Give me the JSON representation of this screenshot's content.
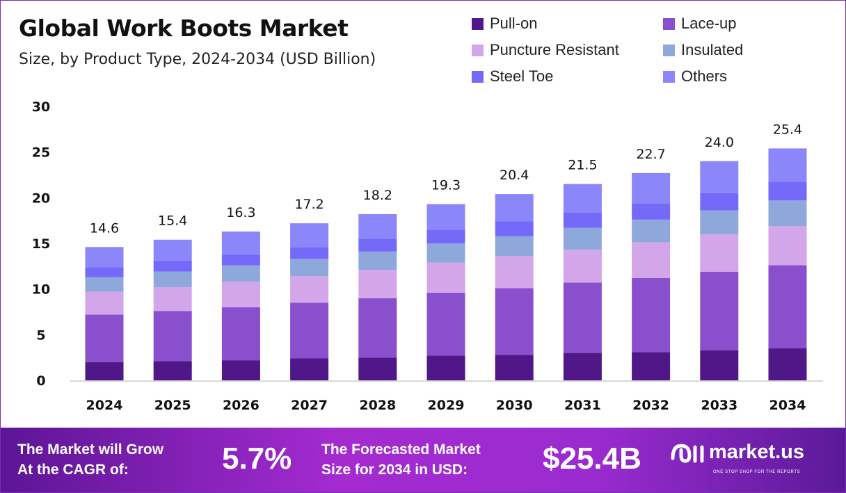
{
  "chart_data": {
    "type": "bar",
    "stacked": true,
    "title": "Global Work Boots Market",
    "subtitle": "Size, by Product Type, 2024-2034 (USD Billion)",
    "xlabel": "",
    "ylabel": "",
    "ylim": [
      0,
      30
    ],
    "yticks": [
      0,
      5,
      10,
      15,
      20,
      25,
      30
    ],
    "grid": false,
    "legend_position": "top-right",
    "categories": [
      "2024",
      "2025",
      "2026",
      "2027",
      "2028",
      "2029",
      "2030",
      "2031",
      "2032",
      "2033",
      "2034"
    ],
    "totals": [
      14.6,
      15.4,
      16.3,
      17.2,
      18.2,
      19.3,
      20.4,
      21.5,
      22.7,
      24.0,
      25.4
    ],
    "total_labels": [
      "14.6",
      "15.4",
      "16.3",
      "17.2",
      "18.2",
      "19.3",
      "20.4",
      "21.5",
      "22.7",
      "24.0",
      "25.4"
    ],
    "series": [
      {
        "name": "Pull-on",
        "color": "#4f1787",
        "values": [
          2.0,
          2.1,
          2.2,
          2.4,
          2.5,
          2.7,
          2.8,
          3.0,
          3.1,
          3.3,
          3.5
        ]
      },
      {
        "name": "Lace-up",
        "color": "#8a4fcc",
        "values": [
          5.2,
          5.5,
          5.8,
          6.1,
          6.5,
          6.9,
          7.3,
          7.7,
          8.1,
          8.6,
          9.1
        ]
      },
      {
        "name": "Puncture Resistant",
        "color": "#d3a6ea",
        "values": [
          2.5,
          2.6,
          2.8,
          2.9,
          3.1,
          3.3,
          3.5,
          3.6,
          3.9,
          4.1,
          4.3
        ]
      },
      {
        "name": "Insulated",
        "color": "#8fa8dc",
        "values": [
          1.6,
          1.7,
          1.8,
          1.9,
          2.0,
          2.1,
          2.2,
          2.4,
          2.5,
          2.6,
          2.8
        ]
      },
      {
        "name": "Steel Toe",
        "color": "#7569f9",
        "values": [
          1.1,
          1.2,
          1.2,
          1.3,
          1.4,
          1.5,
          1.6,
          1.7,
          1.8,
          1.9,
          2.0
        ]
      },
      {
        "name": "Others",
        "color": "#8b87fb",
        "values": [
          2.2,
          2.3,
          2.5,
          2.6,
          2.7,
          2.8,
          3.0,
          3.1,
          3.3,
          3.5,
          3.7
        ]
      }
    ]
  },
  "footer": {
    "cagr_text_1": "The Market will Grow",
    "cagr_text_2": "At the CAGR of:",
    "cagr_value": "5.7%",
    "forecast_text_1": "The Forecasted Market",
    "forecast_text_2": "Size for 2034 in USD:",
    "forecast_value": "$25.4B",
    "logo_text": "market.us",
    "logo_tagline": "ONE STOP SHOP FOR THE REPORTS"
  }
}
